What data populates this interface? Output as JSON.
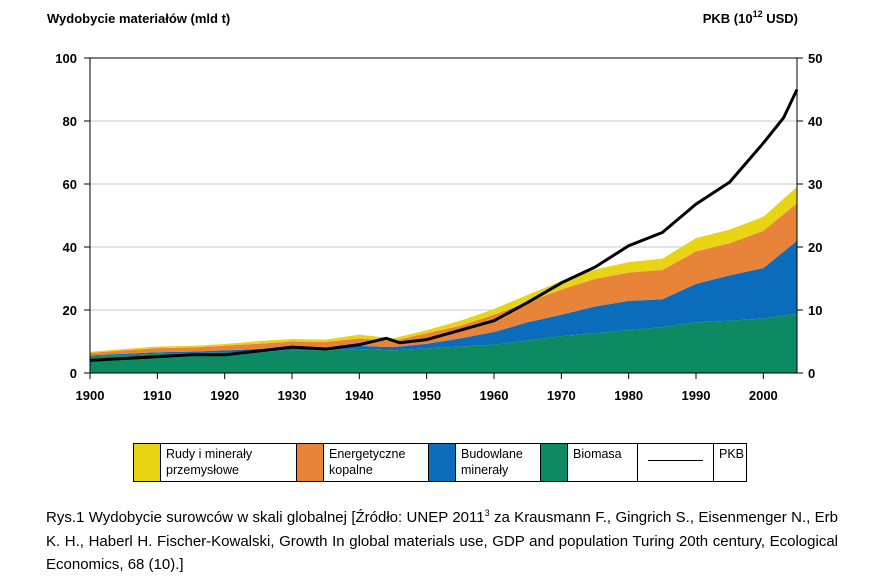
{
  "chart_data": {
    "type": "area",
    "title_left": "Wydobycie materiałów (mld t)",
    "title_right_prefix": "PKB (10",
    "title_right_sup": "12",
    "title_right_suffix": " USD)",
    "x": [
      1900,
      1905,
      1910,
      1915,
      1920,
      1925,
      1930,
      1935,
      1940,
      1945,
      1950,
      1955,
      1960,
      1965,
      1970,
      1975,
      1980,
      1985,
      1990,
      1995,
      2000,
      2005
    ],
    "xlim": [
      1900,
      2005
    ],
    "x_ticks": [
      "1900",
      "1910",
      "1920",
      "1930",
      "1940",
      "1950",
      "1960",
      "1970",
      "1980",
      "1990",
      "2000"
    ],
    "ylim": [
      0,
      100
    ],
    "y_ticks": [
      "0",
      "20",
      "40",
      "60",
      "80",
      "100"
    ],
    "y2lim": [
      0,
      50
    ],
    "y2_ticks": [
      "0",
      "10",
      "20",
      "30",
      "40",
      "50"
    ],
    "stack_order": [
      "Biomasa",
      "Budowlane minerały",
      "Energetyczne kopalne",
      "Rudy i minerały przemysłowe"
    ],
    "series": [
      {
        "name": "Biomasa",
        "color": "#0d8a62",
        "values": [
          5.3,
          5.7,
          6.1,
          6.3,
          6.5,
          6.8,
          7.2,
          7.2,
          7.6,
          7.2,
          7.8,
          8.4,
          9.0,
          10.3,
          11.7,
          12.6,
          13.6,
          14.6,
          16.1,
          16.6,
          17.3,
          18.8
        ]
      },
      {
        "name": "Budowlane minerały",
        "color": "#0b6cbc",
        "values": [
          0.3,
          0.4,
          0.5,
          0.5,
          0.7,
          0.8,
          0.9,
          0.9,
          1.0,
          1.0,
          1.5,
          2.6,
          4.0,
          5.8,
          6.8,
          8.5,
          9.3,
          8.8,
          12.2,
          14.4,
          16.0,
          23.2
        ]
      },
      {
        "name": "Energetyczne kopalne",
        "color": "#e8833a",
        "values": [
          0.8,
          1.1,
          1.3,
          1.3,
          1.5,
          1.7,
          1.9,
          1.8,
          2.4,
          2.0,
          3.3,
          4.0,
          5.5,
          6.4,
          8.0,
          8.8,
          9.0,
          9.3,
          10.3,
          10.2,
          11.8,
          11.9
        ]
      },
      {
        "name": "Rudy i minerały przemysłowe",
        "color": "#e8d414",
        "values": [
          0.3,
          0.4,
          0.5,
          0.5,
          0.5,
          0.8,
          0.8,
          0.7,
          1.2,
          0.8,
          1.0,
          1.6,
          1.8,
          2.3,
          2.7,
          2.9,
          3.3,
          3.6,
          4.2,
          4.3,
          4.5,
          5.2
        ]
      }
    ],
    "line_series": {
      "name": "PKB",
      "color": "#000000",
      "axis": "right",
      "x": [
        1900,
        1905,
        1910,
        1915,
        1920,
        1925,
        1930,
        1935,
        1940,
        1944,
        1946,
        1950,
        1955,
        1960,
        1965,
        1970,
        1975,
        1980,
        1985,
        1990,
        1995,
        2000,
        2003,
        2005
      ],
      "values": [
        2.0,
        2.3,
        2.6,
        2.9,
        2.9,
        3.5,
        4.1,
        3.8,
        4.5,
        5.5,
        4.8,
        5.3,
        6.8,
        8.3,
        11.2,
        14.3,
        16.8,
        20.2,
        22.3,
        26.8,
        30.3,
        36.5,
        40.5,
        45.0
      ]
    },
    "legend": {
      "placement": "bottom",
      "items": [
        {
          "line1": "Rudy i minerały",
          "line2": "przemysłowe",
          "color": "#e8d414"
        },
        {
          "line1": "Energetyczne",
          "line2": "kopalne",
          "color": "#e8833a"
        },
        {
          "line1": "Budowlane",
          "line2": "minerały",
          "color": "#0b6cbc"
        },
        {
          "line1": "Biomasa",
          "line2": "",
          "color": "#0d8a62"
        },
        {
          "line1": "PKB",
          "line2": "",
          "type": "line"
        }
      ]
    }
  },
  "caption": {
    "before_sup": "Rys.1 Wydobycie surowców w skali globalnej [Źródło: UNEP 2011",
    "sup": "3",
    "after_sup": " za Krausmann F., Gingrich S., Eisenmenger N., Erb K. H., Haberl H. Fischer-Kowalski, Growth In global materials use, GDP and population Turing 20th century, Ecological Economics, 68 (10).]"
  }
}
